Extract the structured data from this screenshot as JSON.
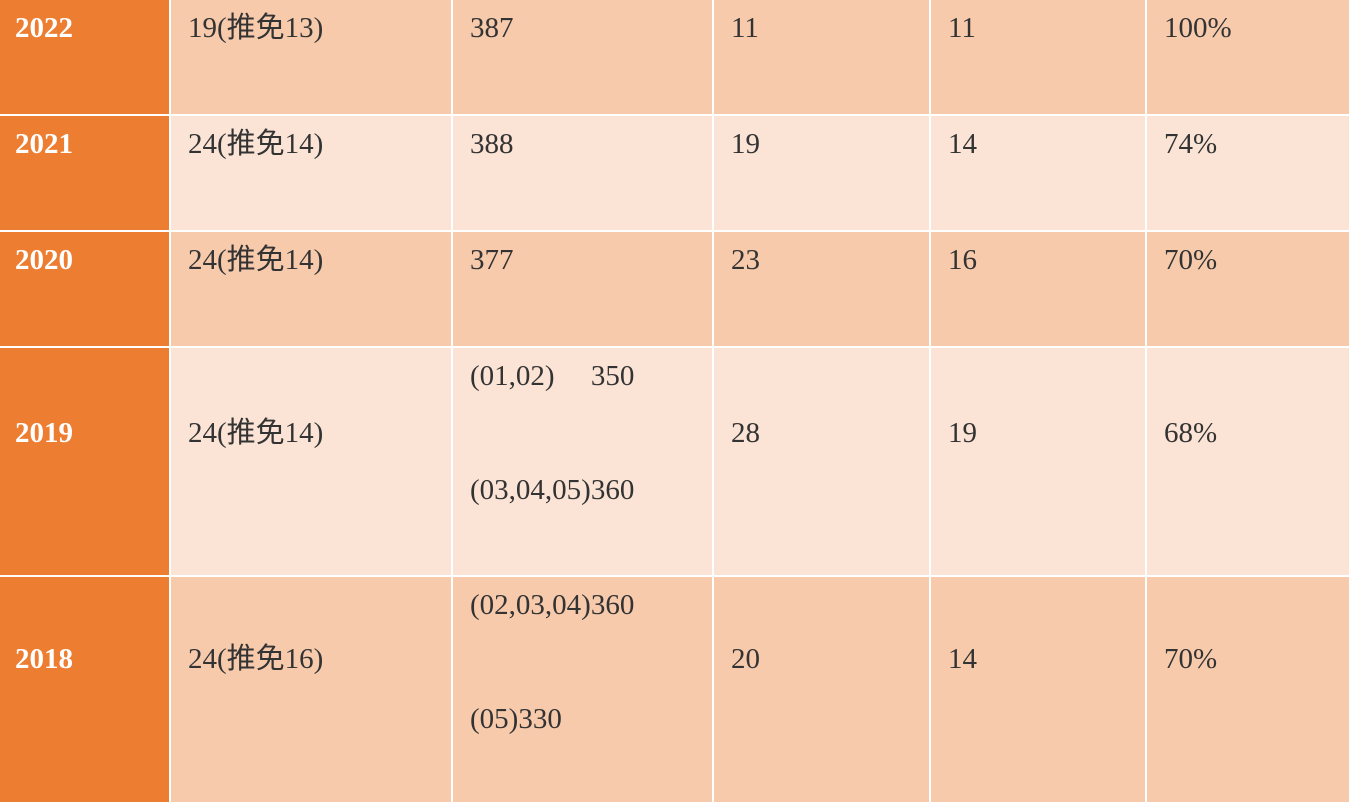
{
  "colors": {
    "year_column": "#ED7D31",
    "row_dark": "#F7CAAC",
    "row_light": "#FBE4D5"
  },
  "rows": [
    {
      "year": "2022",
      "enroll": "19(推免13)",
      "score": [
        "387"
      ],
      "c4": "11",
      "c5": "11",
      "rate": "100%"
    },
    {
      "year": "2021",
      "enroll": "24(推免14)",
      "score": [
        "388"
      ],
      "c4": "19",
      "c5": "14",
      "rate": "74%"
    },
    {
      "year": "2020",
      "enroll": "24(推免14)",
      "score": [
        "377"
      ],
      "c4": "23",
      "c5": "16",
      "rate": "70%"
    },
    {
      "year": "2019",
      "enroll": "24(推免14)",
      "score": [
        "(01,02)　 350",
        "(03,04,05)360"
      ],
      "c4": "28",
      "c5": "19",
      "rate": "68%"
    },
    {
      "year": "2018",
      "enroll": "24(推免16)",
      "score": [
        "(02,03,04)360",
        "(05)330"
      ],
      "c4": "20",
      "c5": "14",
      "rate": "70%"
    }
  ]
}
